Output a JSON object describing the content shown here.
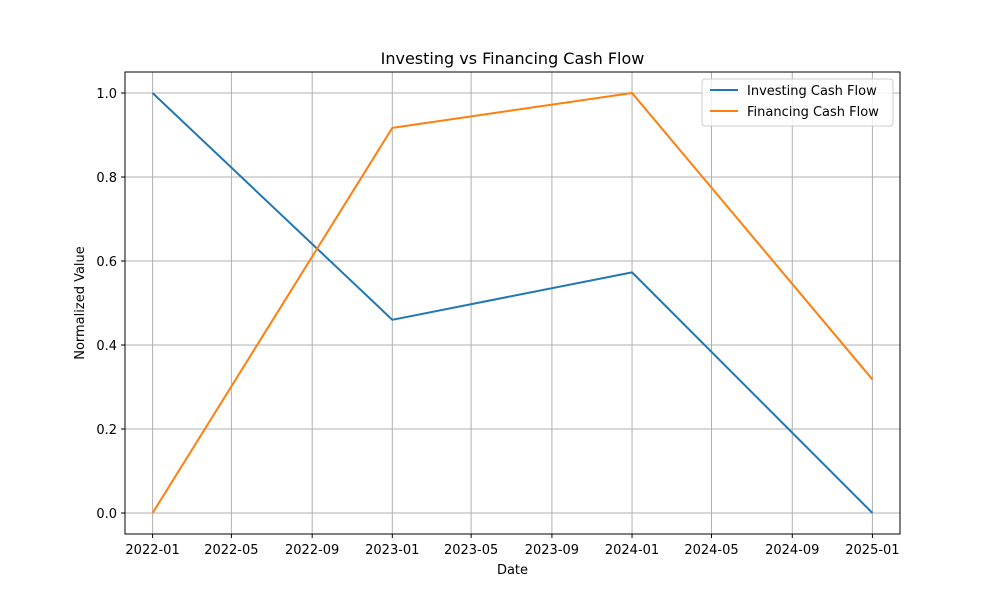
{
  "chart_data": {
    "type": "line",
    "title": "Investing vs Financing Cash Flow",
    "xlabel": "Date",
    "ylabel": "Normalized Value",
    "x": [
      "2022-01-01",
      "2023-01-01",
      "2024-01-01",
      "2025-01-01"
    ],
    "series": [
      {
        "name": "Investing Cash Flow",
        "color": "#1f77b4",
        "values": [
          1.0,
          0.46,
          0.573,
          0.0
        ]
      },
      {
        "name": "Financing Cash Flow",
        "color": "#ff7f0e",
        "values": [
          0.0,
          0.917,
          1.0,
          0.318
        ]
      }
    ],
    "xticks": [
      "2022-01",
      "2022-05",
      "2022-09",
      "2023-01",
      "2023-05",
      "2023-09",
      "2024-01",
      "2024-05",
      "2024-09",
      "2025-01"
    ],
    "yticks": [
      "0.0",
      "0.2",
      "0.4",
      "0.6",
      "0.8",
      "1.0"
    ],
    "xlim": [
      "2021-11-20",
      "2025-02-12"
    ],
    "ylim": [
      -0.05,
      1.05
    ],
    "grid": true,
    "legend_position": "top-right"
  }
}
